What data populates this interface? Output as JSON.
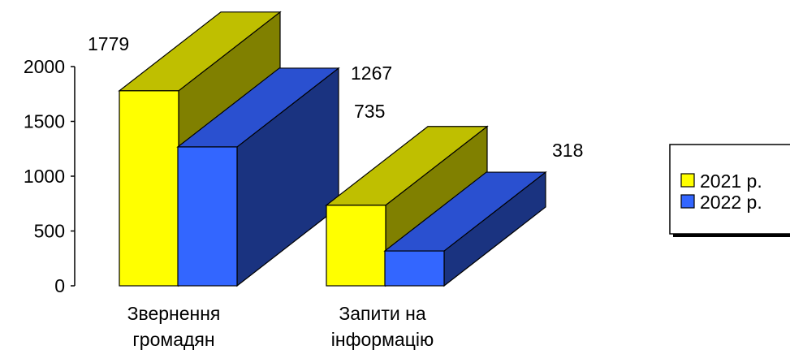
{
  "chart_data": {
    "type": "bar",
    "style": "3d-clustered",
    "categories": [
      "Звернення громадян",
      "Запити на інформацію"
    ],
    "category_lines": [
      [
        "Звернення",
        "громадян"
      ],
      [
        "Запити на",
        "інформацію"
      ]
    ],
    "series": [
      {
        "name": "2021 р.",
        "values": [
          1779,
          735
        ]
      },
      {
        "name": "2022 р.",
        "values": [
          1267,
          318
        ]
      }
    ],
    "data_labels": [
      "1779",
      "1267",
      "735",
      "318"
    ],
    "y_ticks": [
      "0",
      "500",
      "1000",
      "1500",
      "2000"
    ],
    "ylim": [
      0,
      2000
    ],
    "grid": false,
    "legend_position": "right",
    "colors": {
      "series_2021": {
        "front": "#ffff00",
        "side": "#808000",
        "top": "#bfbf00"
      },
      "series_2022": {
        "front": "#3366ff",
        "side": "#1a3380",
        "top": "#2a50d0"
      },
      "axis": "#000000"
    }
  }
}
